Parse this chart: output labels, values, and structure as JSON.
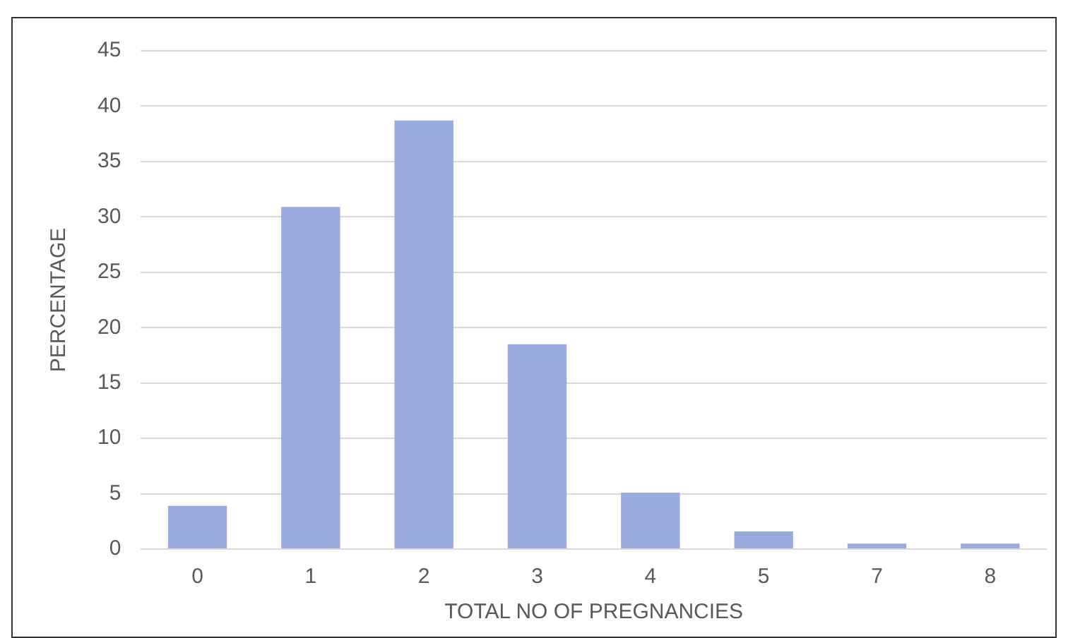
{
  "chart_data": {
    "type": "bar",
    "xlabel": "TOTAL NO OF PREGNANCIES",
    "ylabel": "PERCENTAGE",
    "categories": [
      "0",
      "1",
      "2",
      "3",
      "4",
      "5",
      "7",
      "8"
    ],
    "values": [
      3.9,
      30.9,
      38.7,
      18.5,
      5.1,
      1.6,
      0.5,
      0.5
    ],
    "color": "#98abdc",
    "ylim": [
      0,
      45
    ],
    "yticks": [
      0,
      5,
      10,
      15,
      20,
      25,
      30,
      35,
      40,
      45
    ],
    "grid": "y"
  }
}
